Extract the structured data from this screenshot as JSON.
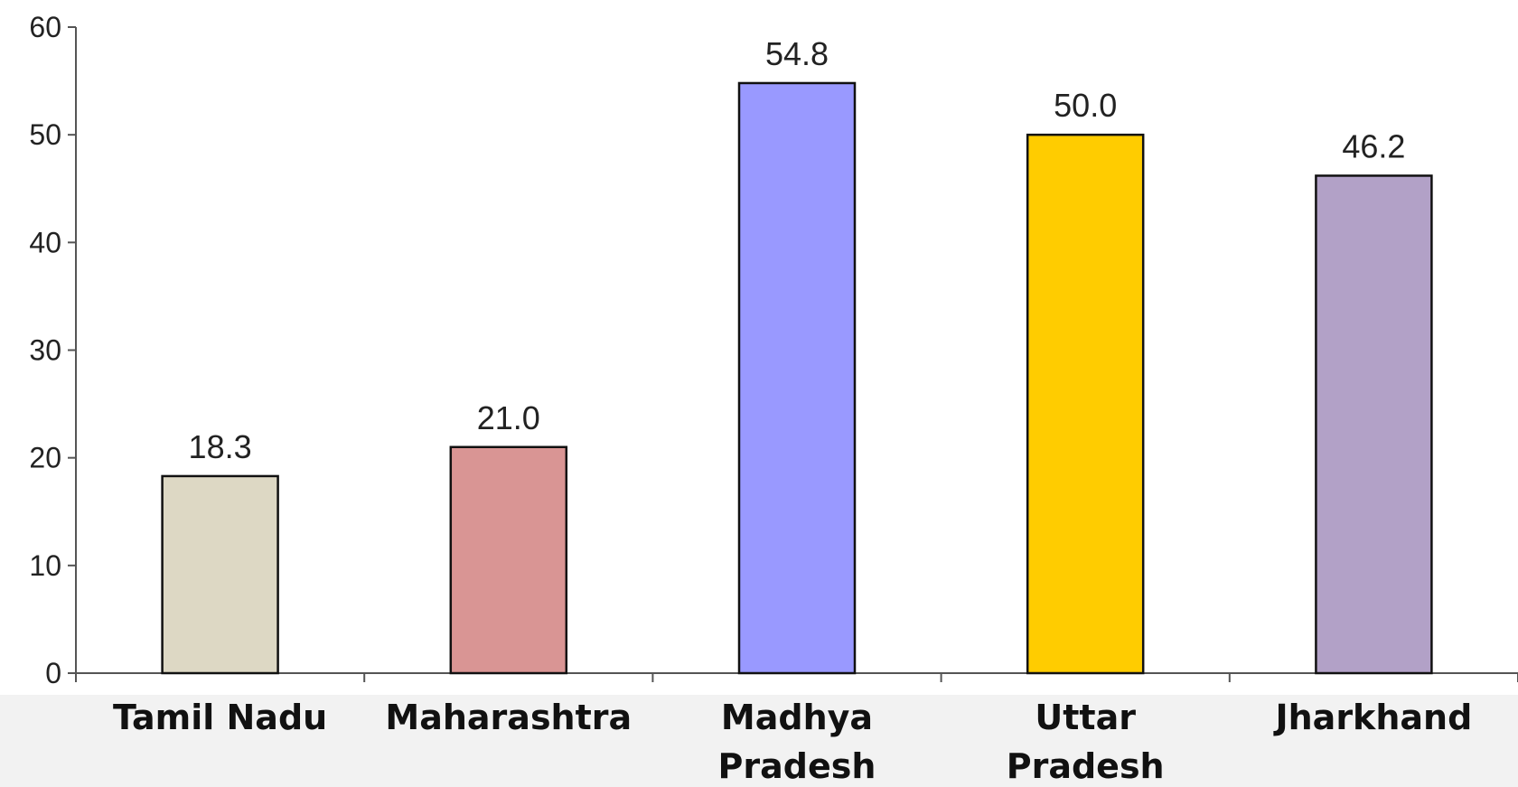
{
  "chart_data": {
    "type": "bar",
    "categories": [
      "Tamil Nadu",
      "Maharashtra",
      "Madhya Pradesh",
      "Uttar Pradesh",
      "Jharkhand"
    ],
    "values": [
      18.3,
      21.0,
      54.8,
      50.0,
      46.2
    ],
    "value_labels": [
      "18.3",
      "21.0",
      "54.8",
      "50.0",
      "46.2"
    ],
    "colors": [
      "#ddd8c4",
      "#d99594",
      "#9999ff",
      "#ffcc00",
      "#b2a1c7"
    ],
    "ylim": [
      0,
      60
    ],
    "yticks": [
      0,
      10,
      20,
      30,
      40,
      50,
      60
    ],
    "grid": false
  }
}
